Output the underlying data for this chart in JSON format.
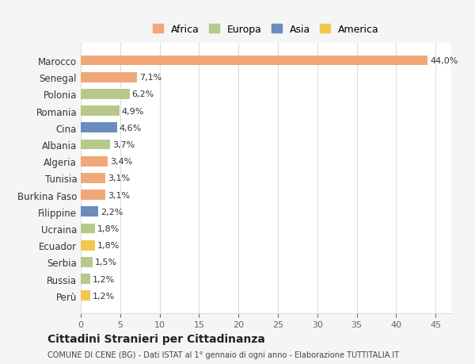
{
  "categories": [
    "Marocco",
    "Senegal",
    "Polonia",
    "Romania",
    "Cina",
    "Albania",
    "Algeria",
    "Tunisia",
    "Burkina Faso",
    "Filippine",
    "Ucraina",
    "Ecuador",
    "Serbia",
    "Russia",
    "Perù"
  ],
  "values": [
    44.0,
    7.1,
    6.2,
    4.9,
    4.6,
    3.7,
    3.4,
    3.1,
    3.1,
    2.2,
    1.8,
    1.8,
    1.5,
    1.2,
    1.2
  ],
  "labels": [
    "44,0%",
    "7,1%",
    "6,2%",
    "4,9%",
    "4,6%",
    "3,7%",
    "3,4%",
    "3,1%",
    "3,1%",
    "2,2%",
    "1,8%",
    "1,8%",
    "1,5%",
    "1,2%",
    "1,2%"
  ],
  "colors": [
    "#F0A878",
    "#F0A878",
    "#B5C98A",
    "#B5C98A",
    "#6B8CBE",
    "#B5C98A",
    "#F0A878",
    "#F0A878",
    "#F0A878",
    "#6B8CBE",
    "#B5C98A",
    "#F0C850",
    "#B5C98A",
    "#B5C98A",
    "#F0C850"
  ],
  "legend_labels": [
    "Africa",
    "Europa",
    "Asia",
    "America"
  ],
  "legend_colors": [
    "#F0A878",
    "#B5C98A",
    "#6B8CBE",
    "#F0C850"
  ],
  "title": "Cittadini Stranieri per Cittadinanza",
  "subtitle": "COMUNE DI CENE (BG) - Dati ISTAT al 1° gennaio di ogni anno - Elaborazione TUTTITALIA.IT",
  "xlim": [
    0,
    47
  ],
  "xticks": [
    0,
    5,
    10,
    15,
    20,
    25,
    30,
    35,
    40,
    45
  ],
  "background_color": "#f5f5f5",
  "bar_background": "#ffffff",
  "grid_color": "#dddddd"
}
